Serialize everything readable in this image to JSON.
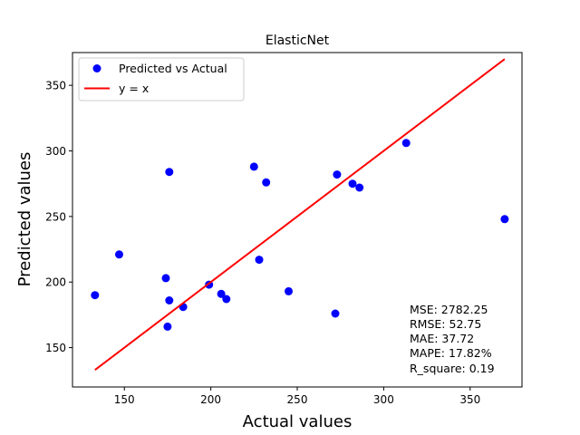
{
  "chart_data": {
    "type": "scatter",
    "title": "ElasticNet",
    "xlabel": "Actual values",
    "ylabel": "Predicted values",
    "xlim": [
      120,
      380
    ],
    "ylim": [
      120,
      375
    ],
    "xticks": [
      150,
      200,
      250,
      300,
      350
    ],
    "yticks": [
      150,
      200,
      250,
      300,
      350
    ],
    "grid": false,
    "legend_position": "top-left",
    "series": [
      {
        "name": "Predicted vs Actual",
        "kind": "scatter",
        "color": "#0000ff",
        "points": [
          [
            133,
            190
          ],
          [
            147,
            221
          ],
          [
            174,
            203
          ],
          [
            175,
            166
          ],
          [
            176,
            284
          ],
          [
            176,
            186
          ],
          [
            184,
            181
          ],
          [
            199,
            198
          ],
          [
            206,
            191
          ],
          [
            209,
            187
          ],
          [
            225,
            288
          ],
          [
            228,
            217
          ],
          [
            232,
            276
          ],
          [
            245,
            193
          ],
          [
            272,
            176
          ],
          [
            273,
            282
          ],
          [
            282,
            275
          ],
          [
            286,
            272
          ],
          [
            313,
            306
          ],
          [
            370,
            248
          ]
        ]
      },
      {
        "name": "y = x",
        "kind": "line",
        "color": "#ff0000",
        "points": [
          [
            133,
            133
          ],
          [
            370,
            370
          ]
        ]
      }
    ],
    "annotations": [
      "MSE: 2782.25",
      "RMSE: 52.75",
      "MAE: 37.72",
      "MAPE: 17.82%",
      "R_square: 0.19"
    ]
  }
}
